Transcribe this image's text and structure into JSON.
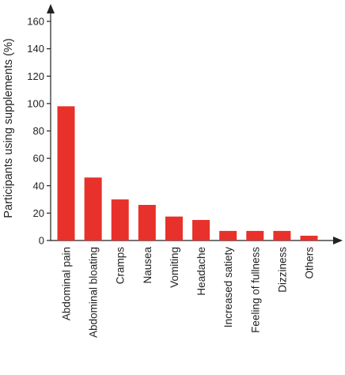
{
  "chart_data": {
    "type": "bar",
    "ylabel": "Participants using supplements (%)",
    "xlabel": "",
    "ylim": [
      0,
      160
    ],
    "yticks": [
      0,
      20,
      40,
      60,
      80,
      100,
      120,
      140,
      160
    ],
    "categories": [
      "Abdominal pain",
      "Abdominal bloating",
      "Cramps",
      "Nausea",
      "Vomiting",
      "Headache",
      "Increased satiety",
      "Feeling of fullness",
      "Dizziness",
      "Others"
    ],
    "values": [
      98,
      46,
      30,
      26,
      17.5,
      15,
      7,
      7,
      7,
      3.5
    ],
    "bar_color": "#e8312a",
    "axis_color": "#222222",
    "grid": false
  }
}
